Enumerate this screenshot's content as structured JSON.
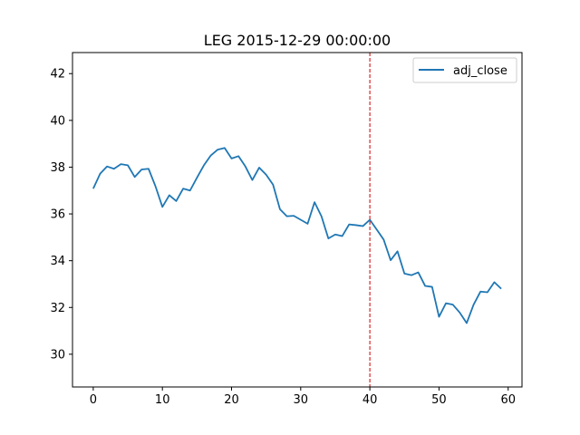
{
  "chart_data": {
    "type": "line",
    "title": "LEG 2015-12-29 00:00:00",
    "xlabel": "",
    "ylabel": "",
    "xlim": [
      -3,
      62
    ],
    "ylim": [
      28.6,
      42.9
    ],
    "x_ticks": [
      0,
      10,
      20,
      30,
      40,
      50,
      60
    ],
    "y_ticks": [
      30,
      32,
      34,
      36,
      38,
      40,
      42
    ],
    "grid": false,
    "legend_position": "top-right",
    "vline": {
      "x": 40,
      "color": "#d62728",
      "style": "dashed"
    },
    "series": [
      {
        "name": "adj_close",
        "color": "#1f77b4",
        "x": [
          0,
          1,
          2,
          3,
          4,
          5,
          6,
          7,
          8,
          9,
          10,
          11,
          12,
          13,
          14,
          15,
          16,
          17,
          18,
          19,
          20,
          21,
          22,
          23,
          24,
          25,
          26,
          27,
          28,
          29,
          30,
          31,
          32,
          33,
          34,
          35,
          36,
          37,
          38,
          39,
          40,
          41,
          42,
          43,
          44,
          45,
          46,
          47,
          48,
          49,
          50,
          51,
          52,
          53,
          54,
          55,
          56,
          57,
          58,
          59
        ],
        "values": [
          37.08,
          37.72,
          38.03,
          37.93,
          38.13,
          38.08,
          37.58,
          37.9,
          37.93,
          37.18,
          36.3,
          36.8,
          36.55,
          37.08,
          37.0,
          37.55,
          38.08,
          38.5,
          38.75,
          38.82,
          38.37,
          38.47,
          38.03,
          37.45,
          37.98,
          37.68,
          37.25,
          36.2,
          35.9,
          35.92,
          35.75,
          35.58,
          36.5,
          35.9,
          34.95,
          35.12,
          35.05,
          35.55,
          35.52,
          35.48,
          35.75,
          35.33,
          34.9,
          34.02,
          34.4,
          33.45,
          33.38,
          33.5,
          32.92,
          32.88,
          31.6,
          32.18,
          32.12,
          31.78,
          31.33,
          32.12,
          32.68,
          32.65,
          33.08,
          32.8
        ]
      }
    ]
  }
}
